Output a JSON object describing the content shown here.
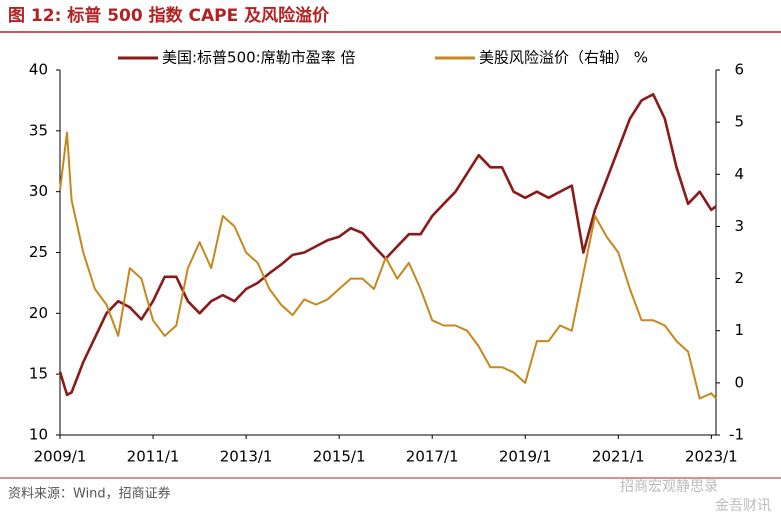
{
  "chart_data": {
    "type": "line",
    "title": "图 12:  标普 500 指数 CAPE 及风险溢价",
    "source": "资料来源：Wind，招商证券",
    "watermarks": [
      "招商宏观静思录",
      "金吾财讯"
    ],
    "x": [
      2009.0,
      2009.15,
      2009.25,
      2009.5,
      2009.75,
      2010.0,
      2010.25,
      2010.5,
      2010.75,
      2011.0,
      2011.25,
      2011.5,
      2011.75,
      2012.0,
      2012.25,
      2012.5,
      2012.75,
      2013.0,
      2013.25,
      2013.5,
      2013.75,
      2014.0,
      2014.25,
      2014.5,
      2014.75,
      2015.0,
      2015.25,
      2015.5,
      2015.75,
      2016.0,
      2016.25,
      2016.5,
      2016.75,
      2017.0,
      2017.25,
      2017.5,
      2017.75,
      2018.0,
      2018.25,
      2018.5,
      2018.75,
      2019.0,
      2019.25,
      2019.5,
      2019.75,
      2020.0,
      2020.25,
      2020.5,
      2020.75,
      2021.0,
      2021.25,
      2021.5,
      2021.75,
      2022.0,
      2022.25,
      2022.5,
      2022.75,
      2023.0,
      2023.1
    ],
    "xlim": [
      2009.0,
      2023.1
    ],
    "xticks": [
      {
        "value": 2009,
        "label": "2009/1"
      },
      {
        "value": 2011,
        "label": "2011/1"
      },
      {
        "value": 2013,
        "label": "2013/1"
      },
      {
        "value": 2015,
        "label": "2015/1"
      },
      {
        "value": 2017,
        "label": "2017/1"
      },
      {
        "value": 2019,
        "label": "2019/1"
      },
      {
        "value": 2021,
        "label": "2021/1"
      },
      {
        "value": 2023,
        "label": "2023/1"
      }
    ],
    "ylim": [
      10,
      40
    ],
    "yticks": [
      10,
      15,
      20,
      25,
      30,
      35,
      40
    ],
    "y2lim": [
      -1,
      6
    ],
    "y2ticks": [
      -1,
      0,
      1,
      2,
      3,
      4,
      5,
      6
    ],
    "series": [
      {
        "name": "美国:标普500:席勒市盈率 倍",
        "color": "#8b1a1a",
        "values": [
          15.2,
          13.3,
          13.5,
          16,
          18,
          20,
          21,
          20.5,
          19.5,
          21,
          23,
          23,
          21,
          20,
          21,
          21.5,
          21,
          22,
          22.5,
          23.3,
          24,
          24.8,
          25,
          25.5,
          26,
          26.3,
          27,
          26.6,
          25.5,
          24.5,
          25.5,
          26.5,
          26.5,
          28,
          29,
          30,
          31.5,
          33,
          32,
          32,
          30,
          29.5,
          30,
          29.5,
          30,
          30.5,
          25,
          28.5,
          31,
          33.5,
          36,
          37.5,
          38,
          36,
          32,
          29,
          30,
          28.5,
          28.8
        ]
      },
      {
        "name": "美股风险溢价（右轴） %",
        "color": "#c8871c",
        "axis": "y2",
        "values": [
          3.7,
          4.8,
          3.5,
          2.5,
          1.8,
          1.5,
          0.9,
          2.2,
          2.0,
          1.2,
          0.9,
          1.1,
          2.2,
          2.7,
          2.2,
          3.2,
          3.0,
          2.5,
          2.3,
          1.8,
          1.5,
          1.3,
          1.6,
          1.5,
          1.6,
          1.8,
          2.0,
          2.0,
          1.8,
          2.4,
          2.0,
          2.3,
          1.8,
          1.2,
          1.1,
          1.1,
          1.0,
          0.7,
          0.3,
          0.3,
          0.2,
          0.0,
          0.8,
          0.8,
          1.1,
          1.0,
          2.1,
          3.2,
          2.8,
          2.5,
          1.8,
          1.2,
          1.2,
          1.1,
          0.8,
          0.6,
          -0.3,
          -0.2,
          -0.3
        ]
      }
    ]
  }
}
